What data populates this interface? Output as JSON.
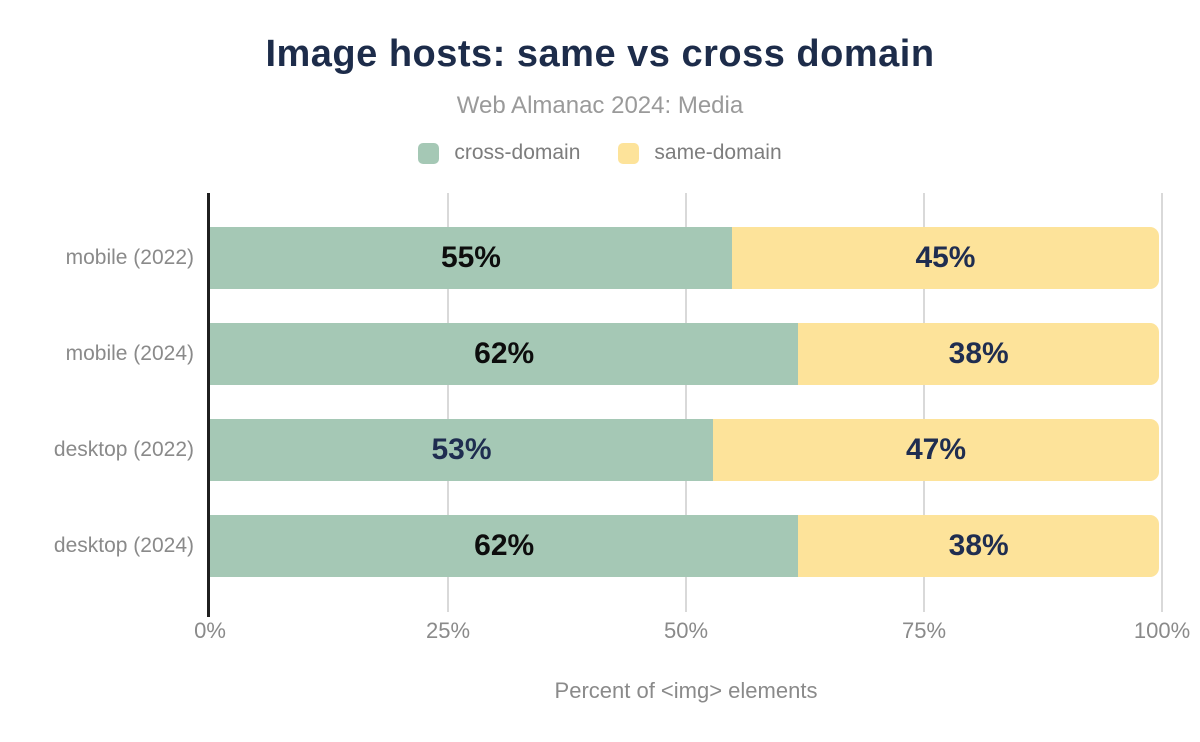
{
  "header": {
    "title": "Image hosts: same vs cross domain",
    "subtitle": "Web Almanac 2024: Media"
  },
  "legend": [
    {
      "label": "cross-domain",
      "color": "#a5c8b5"
    },
    {
      "label": "same-domain",
      "color": "#fde39a"
    }
  ],
  "chart_data": {
    "type": "bar",
    "stacked": true,
    "orientation": "horizontal",
    "title": "Image hosts: same vs cross domain",
    "subtitle": "Web Almanac 2024: Media",
    "categories": [
      "mobile (2022)",
      "mobile (2024)",
      "desktop (2022)",
      "desktop (2024)"
    ],
    "series": [
      {
        "name": "cross-domain",
        "color": "#a5c8b5",
        "values": [
          55,
          62,
          53,
          62
        ],
        "data_label_colors": [
          "#0d0d0d",
          "#0d0d0d",
          "#1f2d50",
          "#0d0d0d"
        ]
      },
      {
        "name": "same-domain",
        "color": "#fde39a",
        "values": [
          45,
          38,
          47,
          38
        ],
        "data_label_colors": [
          "#1f2d50",
          "#1f2d50",
          "#1f2d50",
          "#1f2d50"
        ]
      }
    ],
    "xlabel": "Percent of <img> elements",
    "ylabel": "",
    "x_ticks": [
      "0%",
      "25%",
      "50%",
      "75%",
      "100%"
    ],
    "x_tick_values": [
      0,
      25,
      50,
      75,
      100
    ],
    "xlim": [
      0,
      100
    ],
    "grid": true,
    "legend_position": "top",
    "data_label_suffix": "%"
  },
  "style": {
    "grid_color": "#d9d9d9",
    "axis_color": "#1f1f1f",
    "title_color": "#1d2c4a",
    "muted_text_color": "#8a8a8a"
  }
}
